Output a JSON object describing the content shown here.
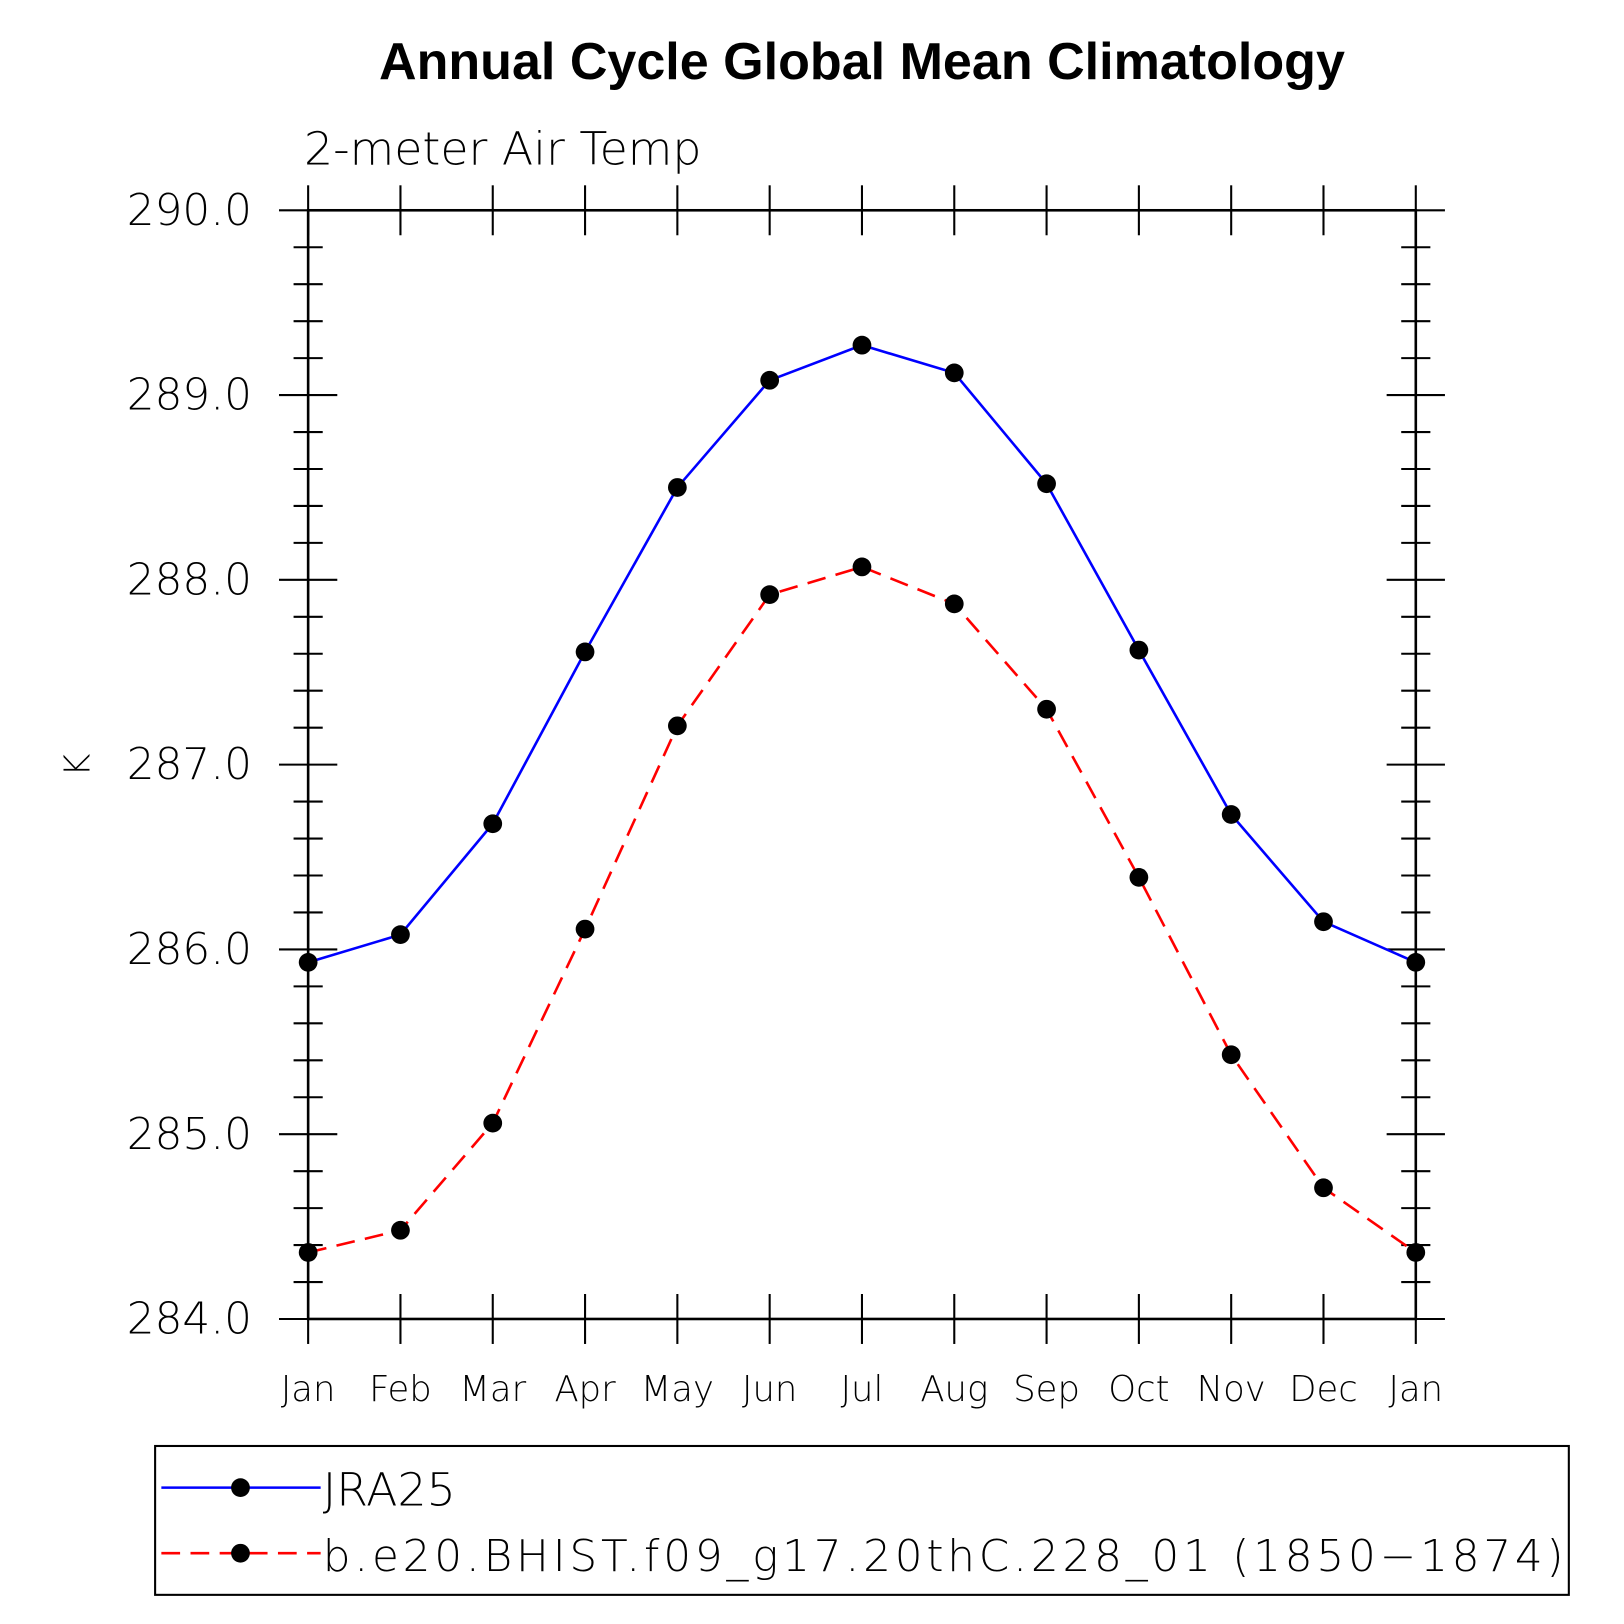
{
  "chart_data": {
    "type": "line",
    "title": "Annual Cycle Global Mean Climatology",
    "subtitle": "2-meter Air Temp",
    "xlabel": "",
    "ylabel": "K",
    "categories": [
      "Jan",
      "Feb",
      "Mar",
      "Apr",
      "May",
      "Jun",
      "Jul",
      "Aug",
      "Sep",
      "Oct",
      "Nov",
      "Dec",
      "Jan"
    ],
    "ylim": [
      284.0,
      290.0
    ],
    "yticks": [
      "284.0",
      "285.0",
      "286.0",
      "287.0",
      "288.0",
      "289.0",
      "290.0"
    ],
    "grid": false,
    "legend_position": "bottom",
    "series": [
      {
        "name": "JRA25",
        "color": "#0000ff",
        "style": "solid",
        "values": [
          285.93,
          286.08,
          286.68,
          287.61,
          288.5,
          289.08,
          289.27,
          289.12,
          288.52,
          287.62,
          286.73,
          286.15,
          285.93
        ]
      },
      {
        "name": "b.e20.BHIST.f09_g17.20thC.228_01 (1850−1874)",
        "color": "#ff0000",
        "style": "dashed",
        "values": [
          284.36,
          284.48,
          285.06,
          286.11,
          287.21,
          287.92,
          288.07,
          287.87,
          287.3,
          286.39,
          285.43,
          284.71,
          284.36
        ]
      }
    ]
  }
}
